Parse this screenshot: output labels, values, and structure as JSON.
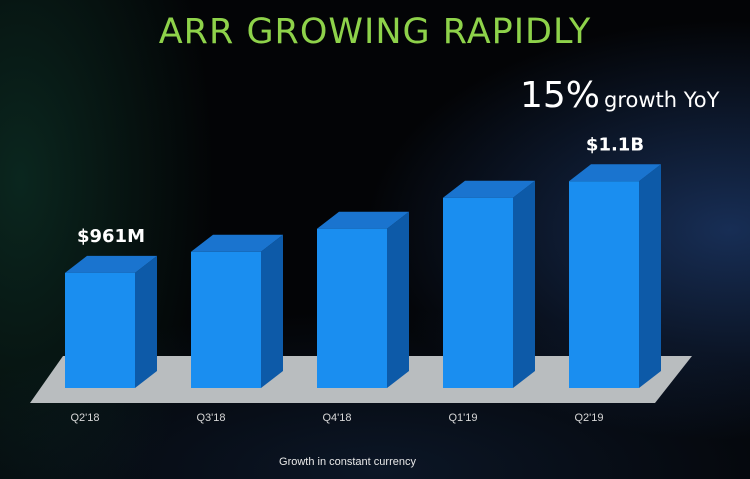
{
  "slide": {
    "title": "ARR GROWING RAPIDLY",
    "growth_value": "15%",
    "growth_label": "growth YoY",
    "footnote": "Growth in constant currency"
  },
  "colors": {
    "title": "#8ed24a",
    "bar_front": "#1a8ef0",
    "bar_top": "#1a74cf",
    "bar_side": "#0d5aa8",
    "floor": "#b9bdbf"
  },
  "chart_data": {
    "type": "bar",
    "title": "ARR GROWING RAPIDLY",
    "xlabel": "",
    "ylabel": "",
    "categories": [
      "Q2'18",
      "Q3'18",
      "Q4'18",
      "Q1'19",
      "Q2'19"
    ],
    "values": [
      961,
      993,
      1028,
      1075,
      1100
    ],
    "units": "$M",
    "data_labels": [
      "$961M",
      "",
      "",
      "",
      "$1.1B"
    ],
    "style": "3d-bar",
    "grid": false,
    "legend": "none"
  }
}
